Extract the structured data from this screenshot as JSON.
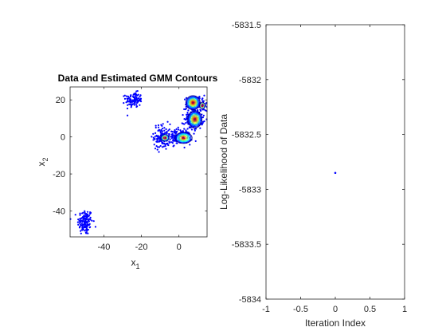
{
  "figure": {
    "background": "#ffffff"
  },
  "chart_data": [
    {
      "type": "scatter",
      "title": "Data and Estimated GMM Contours",
      "xlabel": "x",
      "xlabel_sub": "1",
      "ylabel": "x",
      "ylabel_sub": "2",
      "xlim": [
        -58,
        15
      ],
      "ylim": [
        -54,
        27
      ],
      "xticks": [
        -40,
        -20,
        0
      ],
      "yticks": [
        -40,
        -20,
        0,
        20
      ],
      "xtick_labels": [
        "-40",
        "-20",
        "0"
      ],
      "ytick_labels": [
        "-40",
        "-20",
        "0",
        "20"
      ],
      "grid": false,
      "point_color": "#0000ff",
      "clusters": [
        {
          "center": [
            -50,
            -46
          ],
          "spread": [
            2.0,
            3.5
          ],
          "n": 140
        },
        {
          "center": [
            -24,
            20
          ],
          "spread": [
            2.2,
            2.0
          ],
          "n": 110
        },
        {
          "center": [
            -9,
            0
          ],
          "spread": [
            2.2,
            3.5
          ],
          "n": 120
        },
        {
          "center": [
            0,
            0
          ],
          "spread": [
            3.2,
            2.0
          ],
          "n": 130
        },
        {
          "center": [
            8,
            10
          ],
          "spread": [
            2.5,
            3.0
          ],
          "n": 150
        },
        {
          "center": [
            7,
            18
          ],
          "spread": [
            1.6,
            2.0
          ],
          "n": 70
        },
        {
          "center": [
            12,
            18
          ],
          "spread": [
            2.0,
            2.0
          ],
          "n": 40
        }
      ],
      "contours": [
        {
          "center": [
            7.5,
            18.5
          ],
          "radii": [
            3.8,
            3.8
          ],
          "levels": 9
        },
        {
          "center": [
            8.5,
            9.5
          ],
          "radii": [
            3.8,
            4.6
          ],
          "levels": 9
        },
        {
          "center": [
            2.5,
            -0.5
          ],
          "radii": [
            4.5,
            3.0
          ],
          "levels": 8
        },
        {
          "center": [
            -7.5,
            -0.5
          ],
          "radii": [
            2.2,
            1.8
          ],
          "levels": 4
        },
        {
          "center": [
            12.5,
            17
          ],
          "radii": [
            1.4,
            1.8
          ],
          "levels": 3
        }
      ],
      "contour_colors": [
        "#00008f",
        "#0000ff",
        "#0060ff",
        "#00bfff",
        "#20ffdf",
        "#7fff80",
        "#dfff20",
        "#ffbf00",
        "#ff6000",
        "#e00000"
      ]
    },
    {
      "type": "scatter",
      "title": "",
      "xlabel": "Iteration Index",
      "ylabel": "Log-Likelihood of Data",
      "xlim": [
        -1,
        1
      ],
      "ylim": [
        -5834,
        -5831.5
      ],
      "xticks": [
        -1,
        -0.5,
        0,
        0.5,
        1
      ],
      "yticks": [
        -5834,
        -5833.5,
        -5833,
        -5832.5,
        -5832,
        -5831.5
      ],
      "xtick_labels": [
        "-1",
        "-0.5",
        "0",
        "0.5",
        "1"
      ],
      "ytick_labels": [
        "-5834",
        "-5833.5",
        "-5833",
        "-5832.5",
        "-5832",
        "-5831.5"
      ],
      "grid": false,
      "point_color": "#0000ff",
      "points": [
        {
          "x": 0,
          "y": -5832.85
        }
      ]
    }
  ]
}
